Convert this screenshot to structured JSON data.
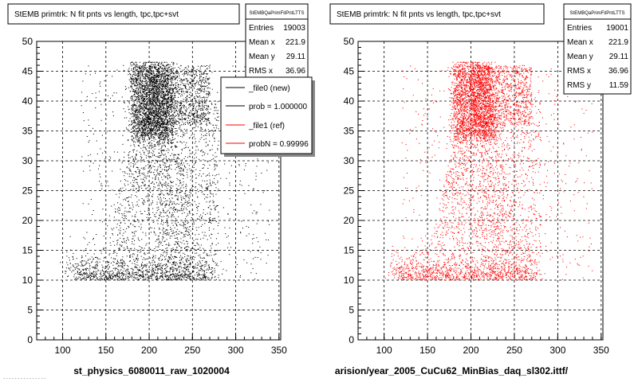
{
  "bottom_text": "- - -  - - -  -  - - - -  - - - -",
  "chart_data": [
    {
      "type": "scatter",
      "title": "StEMB primtrk: N fit pnts vs length, tpc,tpc+svt",
      "xlabel": "st_physics_6080011_raw_1020004",
      "ylabel": "",
      "xlim": [
        70,
        352
      ],
      "ylim": [
        0,
        50
      ],
      "x_ticks": [
        100,
        150,
        200,
        250,
        300,
        350
      ],
      "y_ticks": [
        0,
        5,
        10,
        15,
        20,
        25,
        30,
        35,
        40,
        45,
        50
      ],
      "grid": true,
      "point_color": "#000000",
      "stats": {
        "title": "StEMBQaPrimFitPntLTTS",
        "rows": [
          {
            "label": "Entries",
            "value": "19003"
          },
          {
            "label": "Mean x",
            "value": "221.9"
          },
          {
            "label": "Mean y",
            "value": "29.11"
          },
          {
            "label": "RMS x",
            "value": "36.96"
          }
        ]
      },
      "legend": {
        "placement": "top-right",
        "entries": [
          {
            "label": "_file0 (new)",
            "color": "#000000"
          },
          {
            "label": "prob = 1.000000",
            "color": "#000000"
          },
          {
            "label": "_file1 (ref)",
            "color": "#ff0000"
          },
          {
            "label": "probN = 0.99996",
            "color": "#ff0000"
          }
        ]
      }
    },
    {
      "type": "scatter",
      "title": "StEMB primtrk: N fit pnts vs length, tpc,tpc+svt",
      "xlabel": "arision/year_2005_CuCu62_MinBias_daq_sl302.ittf/",
      "ylabel": "",
      "xlim": [
        70,
        352
      ],
      "ylim": [
        0,
        50
      ],
      "x_ticks": [
        100,
        150,
        200,
        250,
        300,
        350
      ],
      "y_ticks": [
        0,
        5,
        10,
        15,
        20,
        25,
        30,
        35,
        40,
        45,
        50
      ],
      "grid": true,
      "point_color": "#ff0000",
      "stats": {
        "title": "StEMBQaPrimFitPntLTTS",
        "rows": [
          {
            "label": "Entries",
            "value": "19001"
          },
          {
            "label": "Mean x",
            "value": "221.9"
          },
          {
            "label": "Mean y",
            "value": "29.11"
          },
          {
            "label": "RMS x",
            "value": "36.96"
          },
          {
            "label": "RMS y",
            "value": "11.59"
          }
        ]
      }
    }
  ]
}
